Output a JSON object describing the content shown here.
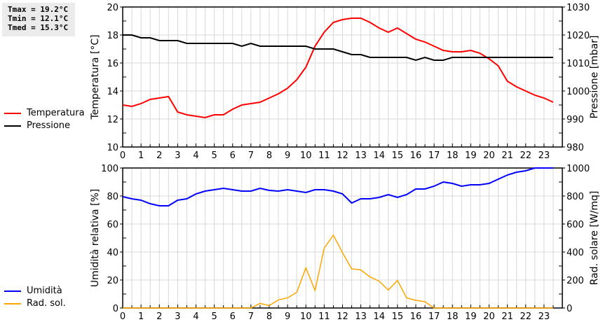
{
  "stats": {
    "tmax": "Tmax = 19.2°C",
    "tmin": "Tmin = 12.1°C",
    "tmed": "Tmed = 15.3°C"
  },
  "legend": {
    "temp": "Temperatura",
    "press": "Pressione",
    "hum": "Umidità",
    "rad": "Rad. sol."
  },
  "colors": {
    "temp": "#ff0000",
    "press": "#000000",
    "hum": "#0000ff",
    "rad": "#ffa500",
    "grid": "#d8d8d8"
  },
  "chart_data": [
    {
      "type": "line",
      "xlim": [
        0,
        24
      ],
      "x_ticks": [
        0,
        1,
        2,
        3,
        4,
        5,
        6,
        7,
        8,
        9,
        10,
        11,
        12,
        13,
        14,
        15,
        16,
        17,
        18,
        19,
        20,
        21,
        22,
        23
      ],
      "ylabel": "Temperatura [°C]",
      "ylim": [
        10,
        20
      ],
      "y_ticks": [
        10,
        12,
        14,
        16,
        18,
        20
      ],
      "y2label": "Pressione [mbar]",
      "y2lim": [
        980,
        1030
      ],
      "y2_ticks": [
        980,
        990,
        1000,
        1010,
        1020,
        1030
      ],
      "grid": true,
      "x": [
        0,
        0.5,
        1,
        1.5,
        2,
        2.5,
        3,
        3.5,
        4,
        4.5,
        5,
        5.5,
        6,
        6.5,
        7,
        7.5,
        8,
        8.5,
        9,
        9.5,
        10,
        10.5,
        11,
        11.5,
        12,
        12.5,
        13,
        13.5,
        14,
        14.5,
        15,
        15.5,
        16,
        16.5,
        17,
        17.5,
        18,
        18.5,
        19,
        19.5,
        20,
        20.5,
        21,
        21.5,
        22,
        22.5,
        23,
        23.5
      ],
      "series": [
        {
          "name": "Temperatura",
          "axis": "left",
          "values": [
            13.0,
            12.9,
            13.1,
            13.4,
            13.5,
            13.6,
            12.5,
            12.3,
            12.2,
            12.1,
            12.3,
            12.3,
            12.7,
            13.0,
            13.1,
            13.2,
            13.5,
            13.8,
            14.2,
            14.8,
            15.7,
            17.2,
            18.2,
            18.9,
            19.1,
            19.2,
            19.2,
            18.9,
            18.5,
            18.2,
            18.5,
            18.1,
            17.7,
            17.5,
            17.2,
            16.9,
            16.8,
            16.8,
            16.9,
            16.7,
            16.3,
            15.8,
            14.7,
            14.3,
            14.0,
            13.7,
            13.5,
            13.2
          ]
        },
        {
          "name": "Pressione",
          "axis": "right",
          "values": [
            1020,
            1020,
            1019,
            1019,
            1018,
            1018,
            1018,
            1017,
            1017,
            1017,
            1017,
            1017,
            1017,
            1016,
            1017,
            1016,
            1016,
            1016,
            1016,
            1016,
            1016,
            1015,
            1015,
            1015,
            1014,
            1013,
            1013,
            1012,
            1012,
            1012,
            1012,
            1012,
            1011,
            1012,
            1011,
            1011,
            1012,
            1012,
            1012,
            1012,
            1012,
            1012,
            1012,
            1012,
            1012,
            1012,
            1012,
            1012
          ]
        }
      ]
    },
    {
      "type": "line",
      "xlim": [
        0,
        24
      ],
      "x_ticks": [
        0,
        1,
        2,
        3,
        4,
        5,
        6,
        7,
        8,
        9,
        10,
        11,
        12,
        13,
        14,
        15,
        16,
        17,
        18,
        19,
        20,
        21,
        22,
        23
      ],
      "ylabel": "Umidità relativa [%]",
      "ylim": [
        0,
        100
      ],
      "y_ticks": [
        0,
        20,
        40,
        60,
        80,
        100
      ],
      "y2label": "Rad. solare [W/mq]",
      "y2lim": [
        0,
        1000
      ],
      "y2_ticks": [
        0,
        200,
        400,
        600,
        800,
        1000
      ],
      "grid": true,
      "x": [
        0,
        0.5,
        1,
        1.5,
        2,
        2.5,
        3,
        3.5,
        4,
        4.5,
        5,
        5.5,
        6,
        6.5,
        7,
        7.5,
        8,
        8.5,
        9,
        9.5,
        10,
        10.5,
        11,
        11.5,
        12,
        12.5,
        13,
        13.5,
        14,
        14.5,
        15,
        15.5,
        16,
        16.5,
        17,
        17.5,
        18,
        18.5,
        19,
        19.5,
        20,
        20.5,
        21,
        21.5,
        22,
        22.5,
        23,
        23.5
      ],
      "series": [
        {
          "name": "Umidità",
          "axis": "left",
          "values": [
            79.5,
            78,
            77,
            74.5,
            73,
            73,
            77,
            78,
            81.5,
            83.5,
            84.5,
            85.5,
            84.5,
            83.5,
            83.5,
            85.5,
            84,
            83.5,
            84.5,
            83.5,
            82.5,
            84.5,
            84.5,
            83.5,
            81.5,
            75,
            78,
            78,
            79,
            81,
            79,
            81,
            85,
            85,
            87,
            90,
            89,
            87,
            88,
            88,
            89,
            92,
            95,
            97,
            98,
            100,
            100,
            100
          ]
        },
        {
          "name": "Rad. sol.",
          "axis": "right",
          "values": [
            0,
            0,
            0,
            0,
            0,
            0,
            0,
            0,
            0,
            0,
            0,
            0,
            0,
            0,
            0,
            33,
            17,
            58,
            72,
            112,
            287,
            125,
            428,
            520,
            395,
            280,
            272,
            222,
            192,
            128,
            197,
            72,
            55,
            45,
            0,
            0,
            0,
            0,
            0,
            0,
            0,
            0,
            0,
            0,
            0,
            0,
            0,
            0
          ]
        }
      ]
    }
  ]
}
